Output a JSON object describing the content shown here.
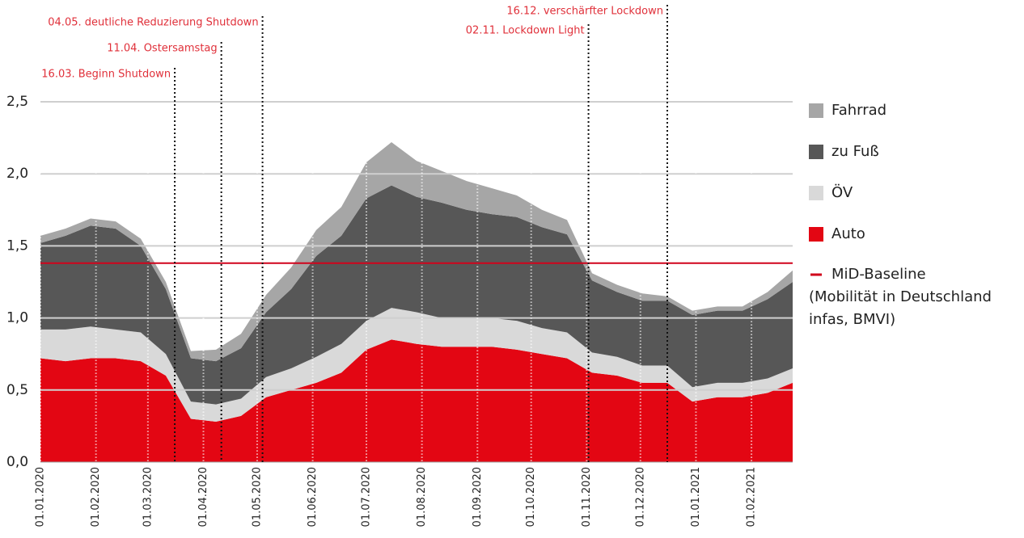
{
  "chart_data": {
    "type": "stacked_area",
    "x": [
      "01.01.2020",
      "15.01.2020",
      "29.01.2020",
      "12.02.2020",
      "26.02.2020",
      "11.03.2020",
      "25.03.2020",
      "08.04.2020",
      "22.04.2020",
      "06.05.2020",
      "20.05.2020",
      "03.06.2020",
      "17.06.2020",
      "01.07.2020",
      "15.07.2020",
      "29.07.2020",
      "12.08.2020",
      "26.08.2020",
      "09.09.2020",
      "23.09.2020",
      "07.10.2020",
      "21.10.2020",
      "04.11.2020",
      "18.11.2020",
      "02.12.2020",
      "16.12.2020",
      "30.12.2020",
      "13.01.2021",
      "27.01.2021",
      "10.02.2021",
      "24.02.2021"
    ],
    "series": [
      {
        "name": "Auto",
        "color": "#e30613",
        "values": [
          0.72,
          0.7,
          0.72,
          0.72,
          0.7,
          0.6,
          0.3,
          0.28,
          0.32,
          0.45,
          0.5,
          0.55,
          0.62,
          0.78,
          0.85,
          0.82,
          0.8,
          0.8,
          0.8,
          0.78,
          0.75,
          0.72,
          0.62,
          0.6,
          0.55,
          0.55,
          0.42,
          0.45,
          0.45,
          0.48,
          0.55
        ]
      },
      {
        "name": "ÖV",
        "color": "#d9d9d9",
        "values": [
          0.2,
          0.22,
          0.22,
          0.2,
          0.2,
          0.15,
          0.12,
          0.12,
          0.12,
          0.14,
          0.15,
          0.18,
          0.2,
          0.2,
          0.22,
          0.22,
          0.2,
          0.2,
          0.2,
          0.2,
          0.18,
          0.18,
          0.14,
          0.13,
          0.12,
          0.12,
          0.1,
          0.1,
          0.1,
          0.1,
          0.1
        ]
      },
      {
        "name": "zu Fuß",
        "color": "#575757",
        "values": [
          0.6,
          0.65,
          0.7,
          0.7,
          0.6,
          0.45,
          0.3,
          0.3,
          0.35,
          0.45,
          0.55,
          0.7,
          0.75,
          0.85,
          0.85,
          0.8,
          0.8,
          0.75,
          0.72,
          0.72,
          0.7,
          0.68,
          0.5,
          0.45,
          0.45,
          0.45,
          0.5,
          0.5,
          0.5,
          0.55,
          0.6
        ]
      },
      {
        "name": "Fahrrad",
        "color": "#a6a6a6",
        "values": [
          0.05,
          0.05,
          0.05,
          0.05,
          0.05,
          0.05,
          0.05,
          0.08,
          0.1,
          0.12,
          0.15,
          0.18,
          0.2,
          0.25,
          0.3,
          0.25,
          0.22,
          0.2,
          0.18,
          0.15,
          0.12,
          0.1,
          0.05,
          0.05,
          0.05,
          0.03,
          0.03,
          0.03,
          0.03,
          0.05,
          0.08
        ]
      }
    ],
    "xlim": [
      "01.01.2020",
      "24.02.2021"
    ],
    "xticks": [
      "01.01.2020",
      "01.02.2020",
      "01.03.2020",
      "01.04.2020",
      "01.05.2020",
      "01.06.2020",
      "01.07.2020",
      "01.08.2020",
      "01.09.2020",
      "01.10.2020",
      "01.11.2020",
      "01.12.2020",
      "01.01.2021",
      "01.02.2021"
    ],
    "ylim": [
      0,
      2.5
    ],
    "yticks": [
      {
        "value": 0,
        "label": "0,0"
      },
      {
        "value": 0.5,
        "label": "0,5"
      },
      {
        "value": 1,
        "label": "1,0"
      },
      {
        "value": 1.5,
        "label": "1,5"
      },
      {
        "value": 2,
        "label": "2,0"
      },
      {
        "value": 2.5,
        "label": "2,5"
      }
    ],
    "grid": true,
    "baseline": {
      "value": 1.38,
      "color": "#d0021b",
      "label": [
        "MiD-Baseline",
        "(Mobilität in Deutschland",
        "infas, BMVI)"
      ]
    },
    "annotations": [
      "16.03. Beginn Shutdown",
      "11.04. Ostersamstag",
      "04.05. deutliche Reduzierung Shutdown",
      "02.11. Lockdown Light",
      "16.12. verschärfter Lockdown"
    ],
    "legend": "right"
  }
}
